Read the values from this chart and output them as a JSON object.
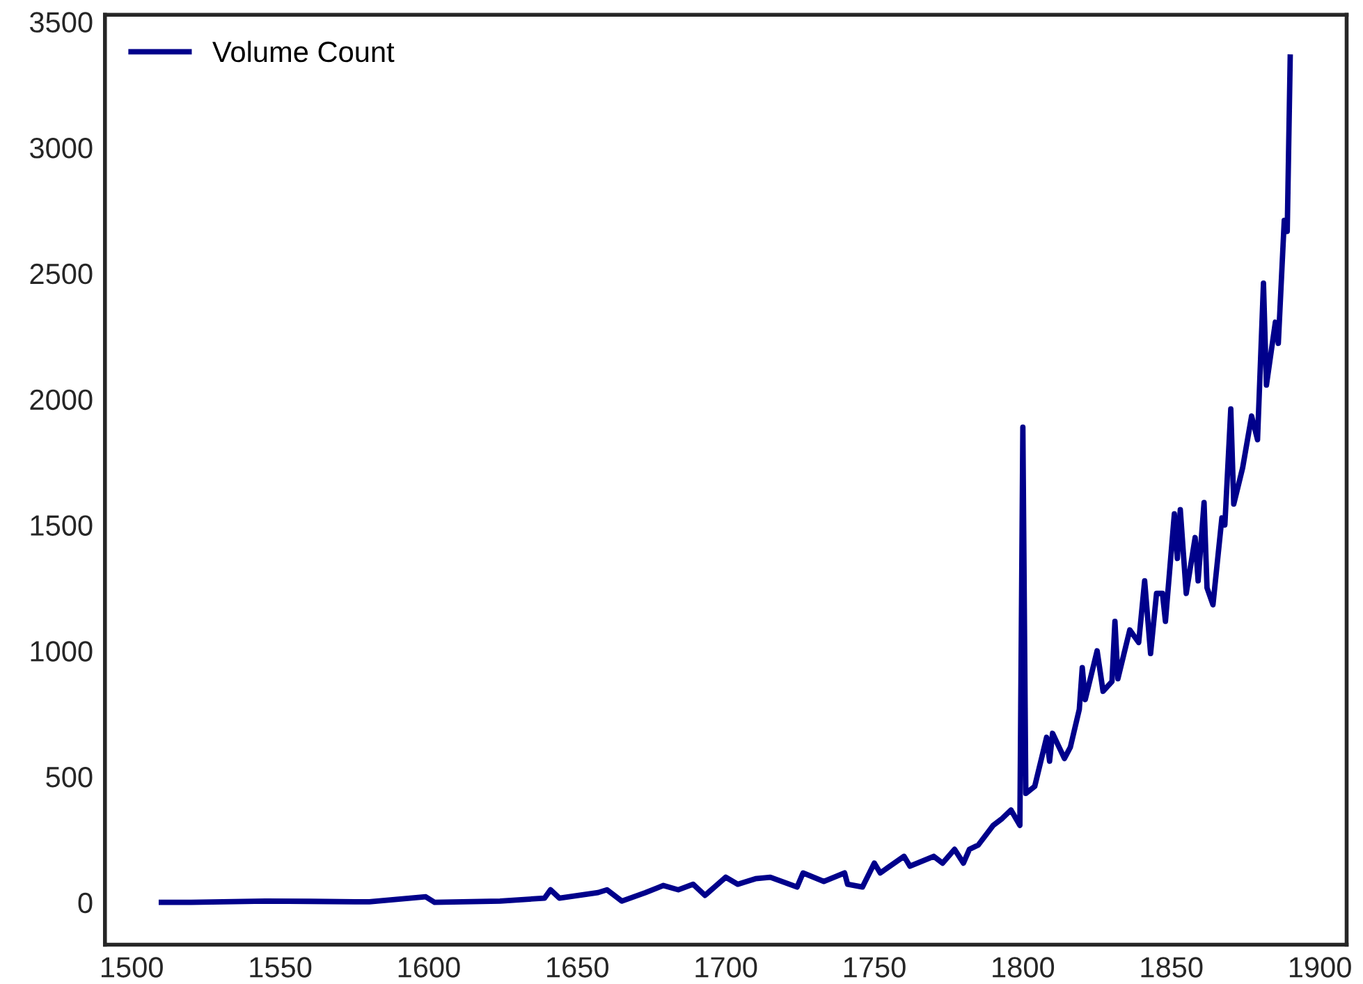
{
  "chart_data": {
    "type": "line",
    "x": [
      1510,
      1520,
      1545,
      1560,
      1580,
      1599,
      1602,
      1624,
      1639,
      1641,
      1644,
      1657,
      1660,
      1665,
      1673,
      1679,
      1684,
      1689,
      1693,
      1700,
      1704,
      1710,
      1715,
      1724,
      1726,
      1733,
      1740,
      1741,
      1746,
      1750,
      1752,
      1760,
      1762,
      1770,
      1773,
      1777,
      1780,
      1782,
      1785,
      1790,
      1793,
      1796,
      1799,
      1800,
      1801,
      1804,
      1808,
      1809,
      1810,
      1814,
      1816,
      1819,
      1820,
      1821,
      1825,
      1827,
      1830,
      1831,
      1832,
      1836,
      1839,
      1841,
      1843,
      1845,
      1847,
      1848,
      1851,
      1852,
      1853,
      1855,
      1858,
      1859,
      1861,
      1862,
      1864,
      1867,
      1868,
      1870,
      1871,
      1874,
      1877,
      1879,
      1881,
      1882,
      1885,
      1886,
      1888,
      1889,
      1890
    ],
    "series": [
      {
        "name": "Volume Count",
        "color": "#00008b",
        "values": [
          0,
          0,
          5,
          4,
          2,
          22,
          0,
          5,
          17,
          50,
          17,
          39,
          50,
          5,
          39,
          67,
          50,
          72,
          28,
          100,
          72,
          94,
          100,
          61,
          117,
          83,
          117,
          72,
          61,
          156,
          117,
          183,
          144,
          183,
          156,
          211,
          156,
          211,
          228,
          306,
          333,
          367,
          306,
          1889,
          433,
          461,
          656,
          561,
          672,
          572,
          617,
          767,
          933,
          806,
          1000,
          839,
          878,
          1117,
          889,
          1083,
          1033,
          1278,
          989,
          1228,
          1228,
          1117,
          1544,
          1367,
          1561,
          1228,
          1450,
          1278,
          1589,
          1250,
          1183,
          1528,
          1500,
          1961,
          1583,
          1728,
          1933,
          1839,
          2461,
          2056,
          2306,
          2222,
          2711,
          2667,
          3360
        ]
      }
    ],
    "xlim": [
      1491,
      1909
    ],
    "ylim": [
      -168,
      3528
    ],
    "xticks": [
      1500,
      1550,
      1600,
      1650,
      1700,
      1750,
      1800,
      1850,
      1900
    ],
    "yticks": [
      0,
      500,
      1000,
      1500,
      2000,
      2500,
      3000,
      3500
    ],
    "legend": "top left",
    "grid": false
  }
}
